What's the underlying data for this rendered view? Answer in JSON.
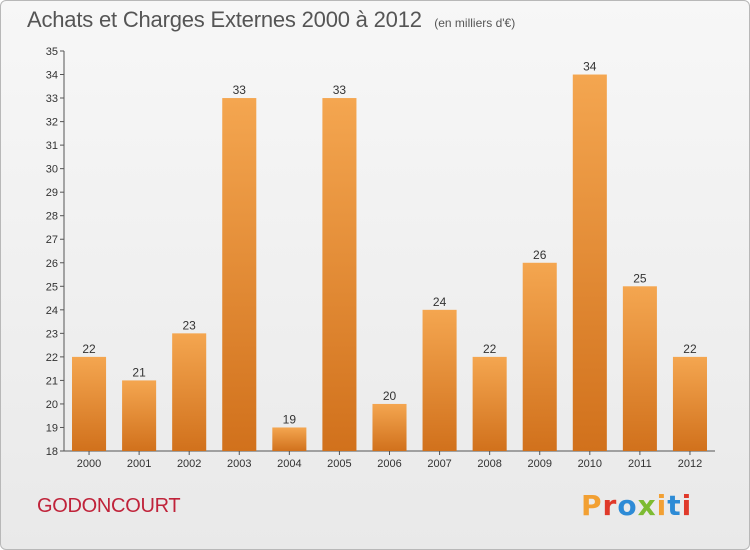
{
  "header": {
    "title": "Achats et Charges Externes 2000 à 2012",
    "subtitle": "(en milliers d'€)"
  },
  "footer": {
    "commune": "GODONCOURT",
    "logo_text": "Proxiti",
    "logo_colors": [
      "#f2a033",
      "#e0392a",
      "#2d8bd6",
      "#7dbb32",
      "#f2a033",
      "#2d8bd6",
      "#e0392a"
    ]
  },
  "colors": {
    "bar_top": "#f4a650",
    "bar_bottom": "#d1711c",
    "axis": "#555555",
    "grid": "#cfcfcf"
  },
  "chart_data": {
    "type": "bar",
    "title": "Achats et Charges Externes 2000 à 2012",
    "subtitle": "(en milliers d'€)",
    "categories": [
      "2000",
      "2001",
      "2002",
      "2003",
      "2004",
      "2005",
      "2006",
      "2007",
      "2008",
      "2009",
      "2010",
      "2011",
      "2012"
    ],
    "values": [
      22,
      21,
      23,
      33,
      19,
      33,
      20,
      24,
      22,
      26,
      34,
      25,
      22
    ],
    "ylim": [
      18,
      35
    ],
    "yticks": [
      18,
      19,
      20,
      21,
      22,
      23,
      24,
      25,
      26,
      27,
      28,
      29,
      30,
      31,
      32,
      33,
      34,
      35
    ],
    "grid": false,
    "data_labels": true
  }
}
